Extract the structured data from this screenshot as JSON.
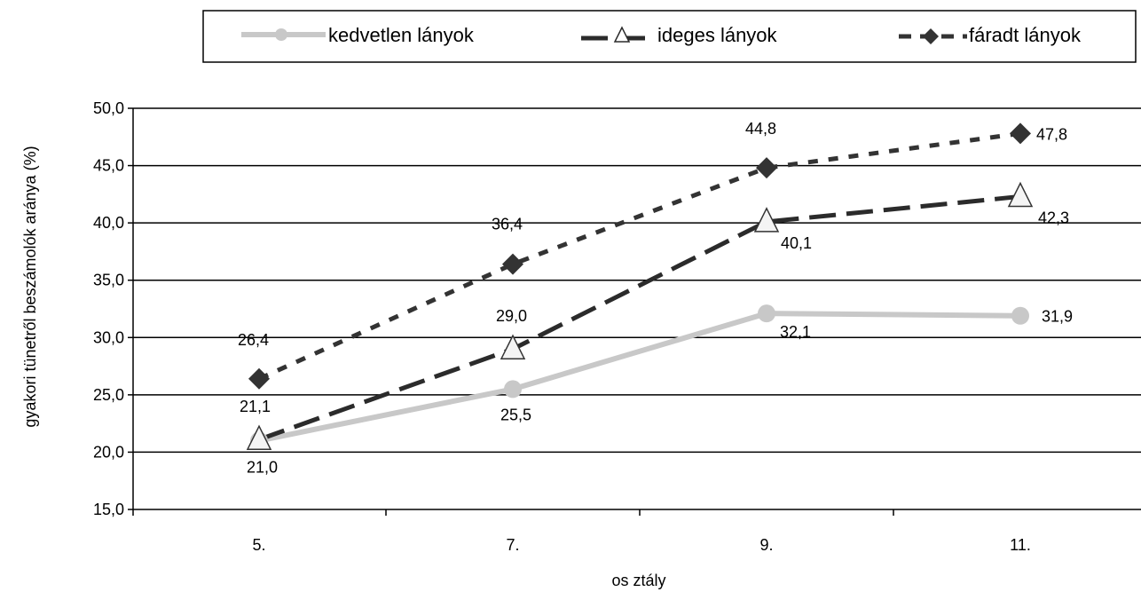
{
  "chart_data": {
    "type": "line",
    "categories": [
      "5.",
      "7.",
      "9.",
      "11."
    ],
    "xlabel": "os ztály",
    "ylabel": "gyakori tünetről beszámolók aránya (%)",
    "ylim": [
      15,
      50
    ],
    "yticks": [
      "15,0",
      "20,0",
      "25,0",
      "30,0",
      "35,0",
      "40,0",
      "45,0",
      "50,0"
    ],
    "grid": true,
    "legend_position": "top",
    "series": [
      {
        "name": "kedvetlen lányok",
        "values": [
          21.0,
          25.5,
          32.1,
          31.9
        ],
        "labels": [
          "21,0",
          "25,5",
          "32,1",
          "31,9"
        ],
        "color": "#c8c8c8",
        "marker": "circle",
        "style": "solid"
      },
      {
        "name": "ideges lányok",
        "values": [
          21.1,
          29.0,
          40.1,
          42.3
        ],
        "labels": [
          "21,1",
          "29,0",
          "40,1",
          "42,3"
        ],
        "color": "#2b2b2b",
        "marker": "triangle",
        "style": "long-dash"
      },
      {
        "name": "fáradt lányok",
        "values": [
          26.4,
          36.4,
          44.8,
          47.8
        ],
        "labels": [
          "26,4",
          "36,4",
          "44,8",
          "47,8"
        ],
        "color": "#333333",
        "marker": "diamond",
        "style": "short-dash"
      }
    ]
  }
}
